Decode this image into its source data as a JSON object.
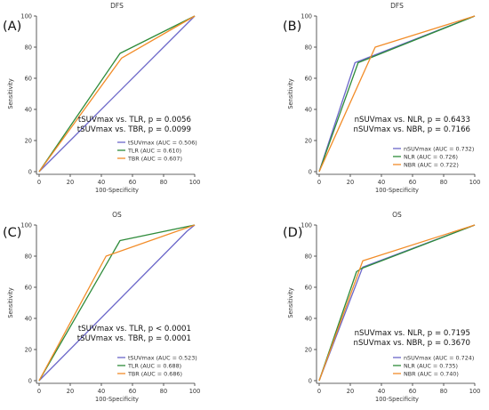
{
  "chart_data": [
    {
      "type": "line",
      "panel_label": "(A)",
      "title": "DFS",
      "xlabel": "100-Specificity",
      "ylabel": "Sensitivity",
      "xlim": [
        0,
        100
      ],
      "ylim": [
        0,
        100
      ],
      "xticks": [
        0,
        20,
        40,
        60,
        80,
        100
      ],
      "yticks": [
        0,
        20,
        40,
        60,
        80,
        100
      ],
      "annotations": [
        "tSUVmax vs. TLR, p = 0.0056",
        "tSUVmax vs. TBR, p = 0.0099"
      ],
      "series": [
        {
          "name": "tSUVmax (AUC = 0.506)",
          "color": "#6b67c9",
          "points": [
            [
              0,
              0
            ],
            [
              100,
              100
            ]
          ]
        },
        {
          "name": "TLR (AUC = 0.610)",
          "color": "#2e8b3a",
          "points": [
            [
              0,
              0
            ],
            [
              52,
              76
            ],
            [
              100,
              100
            ]
          ]
        },
        {
          "name": "TBR (AUC = 0.607)",
          "color": "#f28c28",
          "points": [
            [
              0,
              0
            ],
            [
              53,
              73
            ],
            [
              100,
              100
            ]
          ]
        }
      ]
    },
    {
      "type": "line",
      "panel_label": "(B)",
      "title": "DFS",
      "xlabel": "100-Specificity",
      "ylabel": "Sensitivity",
      "xlim": [
        0,
        100
      ],
      "ylim": [
        0,
        100
      ],
      "xticks": [
        0,
        20,
        40,
        60,
        80,
        100
      ],
      "yticks": [
        0,
        20,
        40,
        60,
        80,
        100
      ],
      "annotations": [
        "nSUVmax vs. NLR, p = 0.6433",
        "nSUVmax vs. NBR, p = 0.7166"
      ],
      "series": [
        {
          "name": "nSUVmax (AUC = 0.732)",
          "color": "#6b67c9",
          "points": [
            [
              0,
              0
            ],
            [
              23,
              70
            ],
            [
              100,
              100
            ]
          ]
        },
        {
          "name": "NLR (AUC = 0.726)",
          "color": "#2e8b3a",
          "points": [
            [
              0,
              0
            ],
            [
              25,
              70
            ],
            [
              100,
              100
            ]
          ]
        },
        {
          "name": "NBR (AUC = 0.722)",
          "color": "#f28c28",
          "points": [
            [
              0,
              0
            ],
            [
              36,
              80
            ],
            [
              100,
              100
            ]
          ]
        }
      ]
    },
    {
      "type": "line",
      "panel_label": "(C)",
      "title": "OS",
      "xlabel": "100-Specificity",
      "ylabel": "Sensitivity",
      "xlim": [
        0,
        100
      ],
      "ylim": [
        0,
        100
      ],
      "xticks": [
        0,
        20,
        40,
        60,
        80,
        100
      ],
      "yticks": [
        0,
        20,
        40,
        60,
        80,
        100
      ],
      "annotations": [
        "tSUVmax vs. TLR, p < 0.0001",
        "tSUVmax vs. TBR, p = 0.0001"
      ],
      "series": [
        {
          "name": "tSUVmax (AUC = 0.523)",
          "color": "#6b67c9",
          "points": [
            [
              0,
              0
            ],
            [
              95,
              96
            ],
            [
              100,
              100
            ]
          ]
        },
        {
          "name": "TLR (AUC = 0.688)",
          "color": "#2e8b3a",
          "points": [
            [
              0,
              0
            ],
            [
              52,
              90
            ],
            [
              100,
              100
            ]
          ]
        },
        {
          "name": "TBR (AUC = 0.686)",
          "color": "#f28c28",
          "points": [
            [
              0,
              0
            ],
            [
              43,
              80
            ],
            [
              100,
              100
            ]
          ]
        }
      ]
    },
    {
      "type": "line",
      "panel_label": "(D)",
      "title": "OS",
      "xlabel": "100-Specificity",
      "ylabel": "Sensitivity",
      "xlim": [
        0,
        100
      ],
      "ylim": [
        0,
        100
      ],
      "xticks": [
        0,
        20,
        40,
        60,
        80,
        100
      ],
      "yticks": [
        0,
        20,
        40,
        60,
        80,
        100
      ],
      "annotations": [
        "nSUVmax vs. NLR, p = 0.7195",
        "nSUVmax vs. NBR, p = 0.3670"
      ],
      "series": [
        {
          "name": "nSUVmax (AUC = 0.724)",
          "color": "#6b67c9",
          "points": [
            [
              0,
              0
            ],
            [
              28,
              73
            ],
            [
              100,
              100
            ]
          ]
        },
        {
          "name": "NLR (AUC = 0.735)",
          "color": "#2e8b3a",
          "points": [
            [
              0,
              0
            ],
            [
              24,
              70
            ],
            [
              27,
              72
            ],
            [
              100,
              100
            ]
          ]
        },
        {
          "name": "NBR (AUC = 0.740)",
          "color": "#f28c28",
          "points": [
            [
              0,
              0
            ],
            [
              28,
              77
            ],
            [
              100,
              100
            ]
          ]
        }
      ]
    }
  ]
}
